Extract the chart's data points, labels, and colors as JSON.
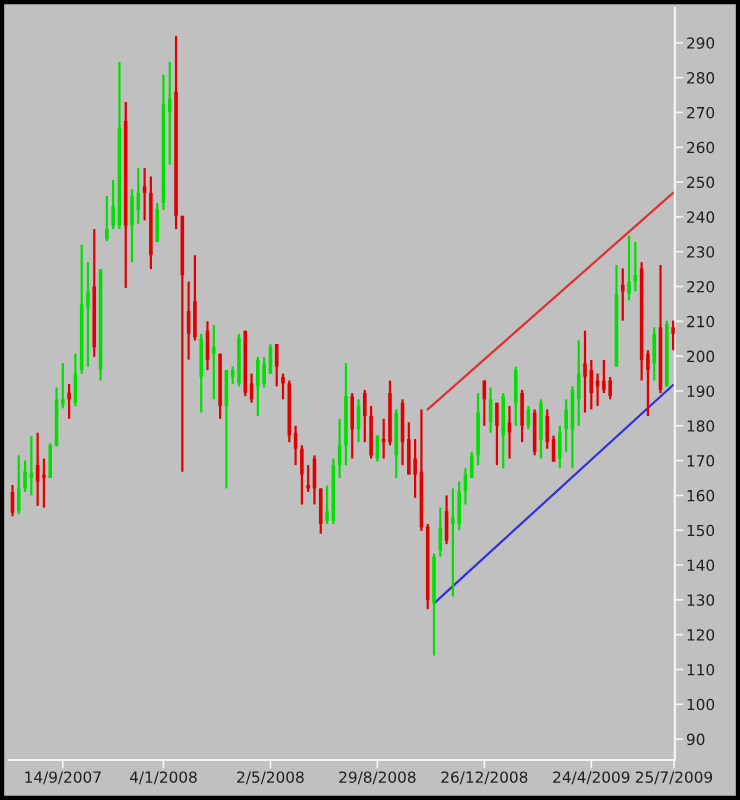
{
  "chart_data": {
    "type": "candlestick",
    "x": [
      "2007-07-20",
      "2007-07-27",
      "2007-08-03",
      "2007-08-10",
      "2007-08-17",
      "2007-08-24",
      "2007-08-31",
      "2007-09-07",
      "2007-09-14",
      "2007-09-21",
      "2007-09-28",
      "2007-10-05",
      "2007-10-12",
      "2007-10-19",
      "2007-10-26",
      "2007-11-02",
      "2007-11-09",
      "2007-11-16",
      "2007-11-23",
      "2007-11-30",
      "2007-12-07",
      "2007-12-14",
      "2007-12-21",
      "2007-12-28",
      "2008-01-04",
      "2008-01-11",
      "2008-01-18",
      "2008-01-25",
      "2008-02-01",
      "2008-02-08",
      "2008-02-15",
      "2008-02-22",
      "2008-02-29",
      "2008-03-07",
      "2008-03-14",
      "2008-03-21",
      "2008-03-28",
      "2008-04-04",
      "2008-04-11",
      "2008-04-18",
      "2008-04-25",
      "2008-05-02",
      "2008-05-09",
      "2008-05-16",
      "2008-05-23",
      "2008-05-30",
      "2008-06-06",
      "2008-06-13",
      "2008-06-20",
      "2008-06-27",
      "2008-07-04",
      "2008-07-11",
      "2008-07-18",
      "2008-07-25",
      "2008-08-01",
      "2008-08-08",
      "2008-08-15",
      "2008-08-22",
      "2008-08-29",
      "2008-09-05",
      "2008-09-12",
      "2008-09-19",
      "2008-09-26",
      "2008-10-03",
      "2008-10-10",
      "2008-10-17",
      "2008-10-24",
      "2008-10-31",
      "2008-11-07",
      "2008-11-14",
      "2008-11-21",
      "2008-11-28",
      "2008-12-05",
      "2008-12-12",
      "2008-12-19",
      "2008-12-26",
      "2009-01-02",
      "2009-01-09",
      "2009-01-16",
      "2009-01-23",
      "2009-01-30",
      "2009-02-06",
      "2009-02-13",
      "2009-02-20",
      "2009-02-27",
      "2009-03-06",
      "2009-03-13",
      "2009-03-20",
      "2009-03-27",
      "2009-04-03",
      "2009-04-10",
      "2009-04-17",
      "2009-04-24",
      "2009-05-01",
      "2009-05-08",
      "2009-05-15",
      "2009-05-22",
      "2009-05-29",
      "2009-06-05",
      "2009-06-12",
      "2009-06-19",
      "2009-06-26",
      "2009-07-03",
      "2009-07-10",
      "2009-07-17",
      "2009-07-24"
    ],
    "ohlc": [
      [
        161,
        163,
        154,
        155
      ],
      [
        155.5,
        171.5,
        154.6,
        162
      ],
      [
        162,
        170,
        161,
        167
      ],
      [
        165,
        177,
        160,
        166.5
      ],
      [
        168.7,
        178,
        157,
        164
      ],
      [
        166,
        170.6,
        156.5,
        165
      ],
      [
        165,
        175,
        165,
        174.4
      ],
      [
        174.4,
        191,
        174,
        187.6
      ],
      [
        186,
        198,
        185,
        187.6
      ],
      [
        189.5,
        192,
        182,
        187.6
      ],
      [
        186.6,
        200.7,
        185.6,
        195
      ],
      [
        196,
        232,
        195,
        215
      ],
      [
        214,
        227,
        197,
        218.6
      ],
      [
        220,
        236.5,
        199.8,
        202.6
      ],
      [
        196,
        225,
        193,
        225
      ],
      [
        233.7,
        246,
        233,
        236.5
      ],
      [
        237.5,
        250.6,
        236.5,
        243
      ],
      [
        237.5,
        284.5,
        236.5,
        265.7
      ],
      [
        267.6,
        273,
        219.6,
        237.5
      ],
      [
        237.5,
        248,
        227,
        246
      ],
      [
        242,
        254,
        238,
        247
      ],
      [
        248.8,
        254,
        239,
        246.9
      ],
      [
        246.9,
        251.6,
        225,
        229
      ],
      [
        232.8,
        244,
        232.8,
        242.2
      ],
      [
        244,
        280.8,
        242,
        272.3
      ],
      [
        270,
        284.5,
        255,
        274
      ],
      [
        276,
        292,
        236.5,
        240.3
      ],
      [
        240.3,
        240.3,
        166.8,
        223.3
      ],
      [
        213,
        221.4,
        199,
        206.4
      ],
      [
        215.8,
        229,
        204.5,
        205.4
      ],
      [
        194,
        206.4,
        183.8,
        205
      ],
      [
        207.3,
        210,
        196,
        198.9
      ],
      [
        200.7,
        209,
        187.6,
        202.6
      ],
      [
        200.7,
        200.7,
        182,
        185.7
      ],
      [
        185.7,
        196,
        162,
        196
      ],
      [
        194,
        197,
        192,
        196
      ],
      [
        192.2,
        206.4,
        191.3,
        205.4
      ],
      [
        207.3,
        207.3,
        188.5,
        189.4
      ],
      [
        192.2,
        195,
        186.6,
        187.6
      ],
      [
        191.3,
        199.8,
        182.8,
        198.9
      ],
      [
        192,
        199.8,
        191,
        197.9
      ],
      [
        195,
        203.5,
        195,
        202.6
      ],
      [
        203.5,
        203.5,
        191.3,
        197
      ],
      [
        194,
        195,
        187.6,
        192.2
      ],
      [
        192.2,
        193,
        175.3,
        177.2
      ],
      [
        178,
        180,
        168.7,
        173.4
      ],
      [
        173.4,
        174.4,
        157.4,
        166
      ],
      [
        163,
        168.7,
        161,
        162
      ],
      [
        170.6,
        171.5,
        157.4,
        162
      ],
      [
        162,
        162,
        149,
        151.8
      ],
      [
        152.7,
        162.8,
        151.8,
        155.5
      ],
      [
        152.7,
        170.6,
        151.8,
        168.7
      ],
      [
        168.7,
        182,
        165,
        174.4
      ],
      [
        174.4,
        198,
        168.7,
        188.5
      ],
      [
        188.5,
        189.4,
        170.6,
        179
      ],
      [
        179,
        187.6,
        175.3,
        185.7
      ],
      [
        189.4,
        190.3,
        175.3,
        182.8
      ],
      [
        182.8,
        185.7,
        170.6,
        171.5
      ],
      [
        170.6,
        177.2,
        169.7,
        177.2
      ],
      [
        176.2,
        182,
        170.6,
        175.3
      ],
      [
        189.4,
        193,
        174.4,
        175.3
      ],
      [
        171.5,
        184.7,
        165,
        183.8
      ],
      [
        186.6,
        187.6,
        168.7,
        175.3
      ],
      [
        176.2,
        181,
        166,
        166
      ],
      [
        170.6,
        176.2,
        159.3,
        166
      ],
      [
        166.8,
        184.7,
        149.8,
        150.8
      ],
      [
        151,
        151.8,
        127.3,
        130
      ],
      [
        129.2,
        143.3,
        114,
        142.4
      ],
      [
        144.2,
        156.5,
        142.4,
        150.8
      ],
      [
        155.5,
        160,
        146,
        147
      ],
      [
        151.8,
        162,
        131,
        153.7
      ],
      [
        151.8,
        164,
        150,
        161.2
      ],
      [
        161.2,
        167.8,
        157.4,
        166
      ],
      [
        165,
        172.5,
        165,
        171.5
      ],
      [
        171.5,
        189.4,
        168.7,
        183.8
      ],
      [
        193,
        193,
        180,
        187.6
      ],
      [
        181,
        191,
        178,
        187.6
      ],
      [
        186.6,
        186.6,
        168.7,
        180
      ],
      [
        177.2,
        189.4,
        167.8,
        188.5
      ],
      [
        180.9,
        185.7,
        170.6,
        178.1
      ],
      [
        186.6,
        197,
        180,
        196
      ],
      [
        189.4,
        190.3,
        175.3,
        180
      ],
      [
        180,
        185.7,
        179,
        184.7
      ],
      [
        183.8,
        184.7,
        171.5,
        172.5
      ],
      [
        176,
        187.6,
        170.6,
        186.6
      ],
      [
        182.8,
        184.7,
        173.4,
        175.3
      ],
      [
        176.2,
        177.2,
        169.7,
        169.7
      ],
      [
        170.6,
        180,
        167.8,
        178.1
      ],
      [
        179,
        187.6,
        172.5,
        184.7
      ],
      [
        179,
        191.3,
        167.8,
        190.3
      ],
      [
        187.6,
        204.5,
        180,
        195
      ],
      [
        197.9,
        207.3,
        183.8,
        194.1
      ],
      [
        196,
        198.9,
        184.7,
        189.4
      ],
      [
        193,
        195,
        185.7,
        191.3
      ],
      [
        193,
        198.9,
        189.4,
        190.3
      ],
      [
        193,
        194,
        187.6,
        188.5
      ],
      [
        197,
        226.2,
        197,
        217.7
      ],
      [
        220.5,
        225.2,
        210.2,
        218.6
      ],
      [
        218,
        234.6,
        216,
        221.4
      ],
      [
        221.4,
        232.8,
        218.6,
        223.3
      ],
      [
        225.2,
        227,
        193,
        198.9
      ],
      [
        200.7,
        201.7,
        182.8,
        196
      ],
      [
        197.9,
        208.3,
        193,
        206.4
      ],
      [
        208.3,
        226.2,
        189.4,
        190.3
      ],
      [
        191.3,
        210.2,
        191.3,
        209.2
      ],
      [
        208.3,
        210.2,
        201.7,
        206.4
      ]
    ],
    "colors": [
      "#e00000",
      "#00e000",
      "#00e000",
      "#00e000",
      "#e00000",
      "#e00000",
      "#00e000",
      "#00e000",
      "#00e000",
      "#e00000",
      "#00e000",
      "#00e000",
      "#00e000",
      "#e00000",
      "#00e000",
      "#00e000",
      "#00e000",
      "#00e000",
      "#e00000",
      "#00e000",
      "#00e000",
      "#e00000",
      "#e00000",
      "#00e000",
      "#00e000",
      "#00e000",
      "#e00000",
      "#e00000",
      "#e00000",
      "#e00000",
      "#00e000",
      "#e00000",
      "#00e000",
      "#e00000",
      "#00e000",
      "#00e000",
      "#00e000",
      "#e00000",
      "#e00000",
      "#00e000",
      "#00e000",
      "#00e000",
      "#e00000",
      "#e00000",
      "#e00000",
      "#e00000",
      "#e00000",
      "#e00000",
      "#e00000",
      "#e00000",
      "#00e000",
      "#00e000",
      "#00e000",
      "#00e000",
      "#e00000",
      "#00e000",
      "#e00000",
      "#e00000",
      "#00e000",
      "#e00000",
      "#e00000",
      "#00e000",
      "#e00000",
      "#e00000",
      "#e00000",
      "#e00000",
      "#e00000",
      "#00e000",
      "#00e000",
      "#e00000",
      "#00e000",
      "#00e000",
      "#00e000",
      "#00e000",
      "#00e000",
      "#e00000",
      "#00e000",
      "#e00000",
      "#00e000",
      "#e00000",
      "#00e000",
      "#e00000",
      "#00e000",
      "#e00000",
      "#00e000",
      "#e00000",
      "#e00000",
      "#00e000",
      "#00e000",
      "#00e000",
      "#00e000",
      "#e00000",
      "#e00000",
      "#e00000",
      "#e00000",
      "#e00000",
      "#00e000",
      "#e00000",
      "#00e000",
      "#00e000",
      "#e00000",
      "#e00000",
      "#00e000",
      "#e00000",
      "#00e000",
      "#e00000"
    ],
    "series": [
      {
        "type": "line",
        "color": "#e03030",
        "x": [
          "2008-10-24",
          "2009-07-24"
        ],
        "values": [
          184.7,
          246.9
        ]
      },
      {
        "type": "line",
        "color": "#3030e0",
        "x": [
          "2008-10-31",
          "2009-07-24"
        ],
        "values": [
          129,
          191.7
        ]
      }
    ],
    "xlim": [
      "2007-07-16",
      "2009-07-26"
    ],
    "xticks": [
      {
        "value": "2007-09-14",
        "label": "14/9/2007"
      },
      {
        "value": "2008-01-04",
        "label": "4/1/2008"
      },
      {
        "value": "2008-05-02",
        "label": "2/5/2008"
      },
      {
        "value": "2008-08-29",
        "label": "29/8/2008"
      },
      {
        "value": "2008-12-26",
        "label": "26/12/2008"
      },
      {
        "value": "2009-04-24",
        "label": "24/4/2009"
      },
      {
        "value": "2009-07-25",
        "label": "25/7/2009"
      }
    ],
    "ylim": [
      84,
      300
    ],
    "yticks": [
      90,
      100,
      110,
      120,
      130,
      140,
      150,
      160,
      170,
      180,
      190,
      200,
      210,
      220,
      230,
      240,
      250,
      260,
      270,
      280,
      290
    ]
  }
}
